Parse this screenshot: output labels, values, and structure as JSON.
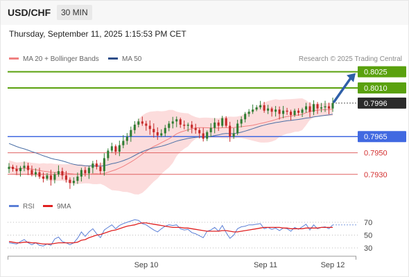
{
  "header": {
    "symbol": "USD/CHF",
    "timeframe": "30 MIN"
  },
  "datetime": "Thursday, September 11, 2025 1:15:53 PM CET",
  "legend": {
    "ma20_label": "MA 20 + Bollinger Bands",
    "ma50_label": "MA 50",
    "rsi_label": "RSI",
    "rsi_ma_label": "9MA"
  },
  "copyright": "Research © 2025 Trading Central",
  "colors": {
    "bull": "#2e7d32",
    "bear": "#c62828",
    "ma20": "#f08080",
    "ma50": "#4a6fa5",
    "band_fill": "#fbd0d0",
    "green_level": "#5aa10e",
    "blue_level": "#4169e1",
    "red_level": "#e06060",
    "rsi": "#5b7fd6",
    "rsi_ma": "#e02020"
  },
  "chart_data": {
    "type": "candlestick",
    "ylim": [
      0.791,
      0.8035
    ],
    "x_labels": [
      "Sep 10",
      "Sep 11",
      "Sep 12"
    ],
    "last_price": "0.7996",
    "levels": [
      {
        "value": 0.8025,
        "label": "0.8025",
        "style": "green_solid_badge"
      },
      {
        "value": 0.801,
        "label": "0.8010",
        "style": "green_solid_badge"
      },
      {
        "value": 0.7965,
        "label": "0.7965",
        "style": "blue_solid_badge"
      },
      {
        "value": 0.795,
        "label": "0.7950",
        "style": "red_text"
      },
      {
        "value": 0.793,
        "label": "0.7930",
        "style": "red_text"
      }
    ],
    "forecast_arrow": {
      "from": 0.7996,
      "to": 0.8025,
      "direction": "up"
    },
    "closes": [
      0.7937,
      0.7935,
      0.7933,
      0.7936,
      0.7938,
      0.7934,
      0.793,
      0.7932,
      0.7928,
      0.7926,
      0.7929,
      0.7925,
      0.793,
      0.7933,
      0.7929,
      0.7925,
      0.7922,
      0.7924,
      0.7928,
      0.7934,
      0.7931,
      0.7936,
      0.794,
      0.7937,
      0.7933,
      0.7945,
      0.7952,
      0.7956,
      0.7951,
      0.7957,
      0.7961,
      0.7965,
      0.7971,
      0.7976,
      0.7979,
      0.7977,
      0.7975,
      0.7972,
      0.7969,
      0.7966,
      0.7968,
      0.7973,
      0.7977,
      0.7979,
      0.7981,
      0.7976,
      0.7975,
      0.7976,
      0.7973,
      0.7971,
      0.7968,
      0.7963,
      0.7969,
      0.7973,
      0.7978,
      0.7975,
      0.7982,
      0.7975,
      0.7965,
      0.7968,
      0.7977,
      0.7981,
      0.7986,
      0.7988,
      0.799,
      0.7992,
      0.7994,
      0.7989,
      0.7991,
      0.7988,
      0.799,
      0.7986,
      0.7989,
      0.7988,
      0.7985,
      0.7989,
      0.7987,
      0.799,
      0.7993,
      0.7988,
      0.7995,
      0.7991,
      0.7992,
      0.7993,
      0.7991,
      0.7996
    ],
    "rsi": {
      "ticks": [
        30,
        50,
        70
      ],
      "values": [
        38,
        37,
        36,
        40,
        43,
        38,
        35,
        38,
        34,
        33,
        36,
        34,
        44,
        47,
        40,
        38,
        35,
        38,
        45,
        55,
        48,
        55,
        60,
        52,
        46,
        58,
        62,
        66,
        60,
        65,
        68,
        70,
        72,
        74,
        73,
        68,
        66,
        62,
        58,
        55,
        60,
        64,
        66,
        65,
        66,
        60,
        58,
        59,
        54,
        52,
        49,
        46,
        56,
        58,
        62,
        56,
        65,
        54,
        45,
        50,
        60,
        63,
        64,
        66,
        66,
        67,
        68,
        60,
        62,
        59,
        61,
        57,
        61,
        60,
        56,
        62,
        59,
        63,
        67,
        58,
        66,
        60,
        62,
        63,
        60,
        66
      ],
      "ma": [
        40,
        39,
        38,
        38,
        39,
        39,
        38,
        38,
        37,
        36,
        36,
        36,
        37,
        38,
        38,
        38,
        38,
        38,
        39,
        42,
        43,
        46,
        48,
        50,
        51,
        53,
        55,
        57,
        58,
        60,
        62,
        64,
        65,
        66,
        68,
        69,
        69,
        68,
        67,
        66,
        65,
        64,
        63,
        62,
        62,
        62,
        61,
        61,
        60,
        59,
        58,
        57,
        56,
        56,
        56,
        56,
        57,
        57,
        56,
        55,
        55,
        56,
        57,
        58,
        59,
        60,
        61,
        62,
        62,
        62,
        62,
        62,
        61,
        61,
        60,
        60,
        60,
        60,
        61,
        61,
        61,
        61,
        62,
        62,
        62,
        62
      ]
    }
  }
}
